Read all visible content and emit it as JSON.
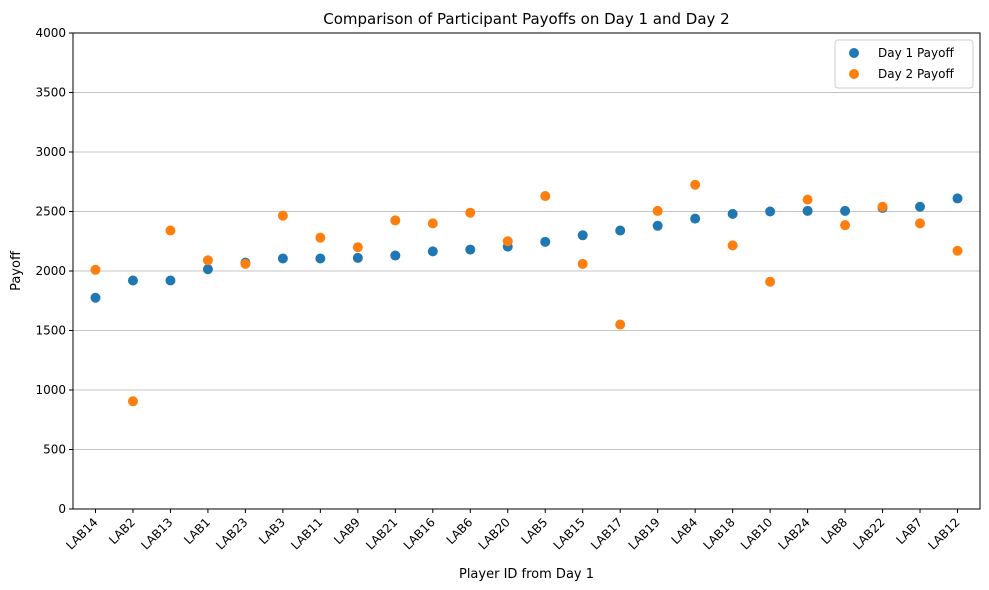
{
  "chart_data": {
    "type": "scatter",
    "title": "Comparison of Participant Payoffs on Day 1 and Day 2",
    "xlabel": "Player ID from Day 1",
    "ylabel": "Payoff",
    "ylim": [
      0,
      4000
    ],
    "yticks": [
      0,
      500,
      1000,
      1500,
      2000,
      2500,
      3000,
      3500,
      4000
    ],
    "grid": "horizontal",
    "legend_position": "top-right",
    "categories": [
      "LAB14",
      "LAB2",
      "LAB13",
      "LAB1",
      "LAB23",
      "LAB3",
      "LAB11",
      "LAB9",
      "LAB21",
      "LAB16",
      "LAB6",
      "LAB20",
      "LAB5",
      "LAB15",
      "LAB17",
      "LAB19",
      "LAB4",
      "LAB18",
      "LAB10",
      "LAB24",
      "LAB8",
      "LAB22",
      "LAB7",
      "LAB12"
    ],
    "series": [
      {
        "name": "Day 1 Payoff",
        "color": "#1f77b4",
        "values": [
          1775,
          1920,
          1920,
          2015,
          2070,
          2105,
          2105,
          2110,
          2130,
          2165,
          2180,
          2205,
          2245,
          2300,
          2340,
          2380,
          2440,
          2480,
          2500,
          2505,
          2505,
          2530,
          2540,
          2610
        ]
      },
      {
        "name": "Day 2 Payoff",
        "color": "#ff7f0e",
        "values": [
          2010,
          905,
          2340,
          2090,
          2060,
          2465,
          2280,
          2200,
          2425,
          2400,
          2490,
          2250,
          2630,
          2060,
          1550,
          2505,
          2725,
          2215,
          1910,
          2600,
          2385,
          2540,
          2400,
          2170
        ]
      }
    ]
  }
}
